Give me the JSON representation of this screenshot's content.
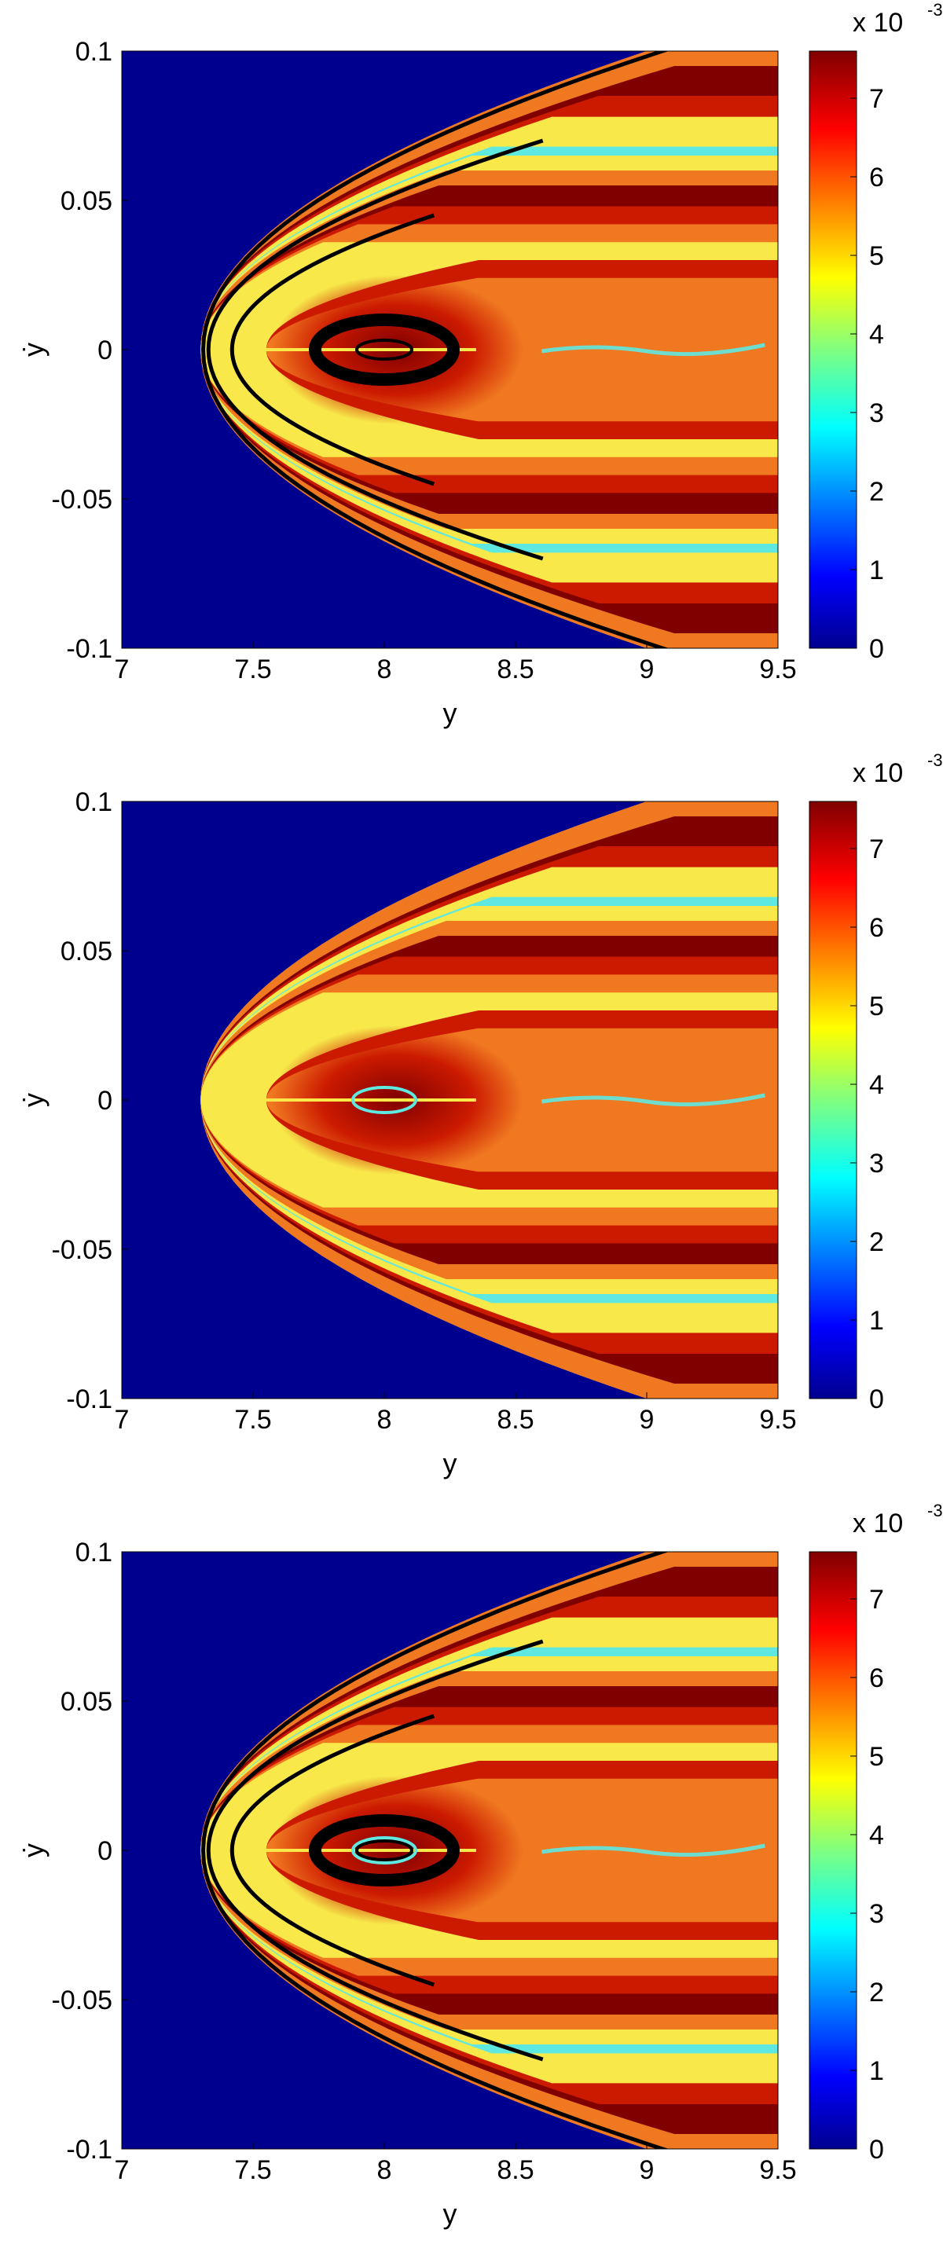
{
  "chart_data": [
    {
      "type": "heatmap",
      "xlabel": "y",
      "ylabel": "ẏ",
      "xlim": [
        7,
        9.5
      ],
      "ylim": [
        -0.1,
        0.1
      ],
      "x_ticks": [
        "7",
        "7.5",
        "8",
        "8.5",
        "9",
        "9.5"
      ],
      "y_ticks": [
        "0.1",
        "0.05",
        "0",
        "-0.05",
        "-0.1"
      ],
      "colorbar": {
        "range": [
          0,
          0.0076
        ],
        "ticks": [
          "0",
          "1",
          "2",
          "3",
          "4",
          "5",
          "6",
          "7"
        ],
        "multiplier_label": "x 10",
        "multiplier_exponent": "-3"
      },
      "overlays": {
        "black_orbit_curves": true,
        "cyan_ellipse": false
      }
    },
    {
      "type": "heatmap",
      "xlabel": "y",
      "ylabel": "ẏ",
      "xlim": [
        7,
        9.5
      ],
      "ylim": [
        -0.1,
        0.1
      ],
      "x_ticks": [
        "7",
        "7.5",
        "8",
        "8.5",
        "9",
        "9.5"
      ],
      "y_ticks": [
        "0.1",
        "0.05",
        "0",
        "-0.05",
        "-0.1"
      ],
      "colorbar": {
        "range": [
          0,
          0.0076
        ],
        "ticks": [
          "0",
          "1",
          "2",
          "3",
          "4",
          "5",
          "6",
          "7"
        ],
        "multiplier_label": "x 10",
        "multiplier_exponent": "-3"
      },
      "overlays": {
        "black_orbit_curves": false,
        "cyan_ellipse": true
      }
    },
    {
      "type": "heatmap",
      "xlabel": "y",
      "ylabel": "ẏ",
      "xlim": [
        7,
        9.5
      ],
      "ylim": [
        -0.1,
        0.1
      ],
      "x_ticks": [
        "7",
        "7.5",
        "8",
        "8.5",
        "9",
        "9.5"
      ],
      "y_ticks": [
        "0.1",
        "0.05",
        "0",
        "-0.05",
        "-0.1"
      ],
      "colorbar": {
        "range": [
          0,
          0.0076
        ],
        "ticks": [
          "0",
          "1",
          "2",
          "3",
          "4",
          "5",
          "6",
          "7"
        ],
        "multiplier_label": "x 10",
        "multiplier_exponent": "-3"
      },
      "overlays": {
        "black_orbit_curves": true,
        "cyan_ellipse": true
      }
    }
  ],
  "colors": {
    "background_region": "#00008f",
    "dark_red": "#800000",
    "red": "#cc1a00",
    "orange": "#f07820",
    "yellow": "#f8e84a",
    "cyan": "#5fe8e0",
    "orbit_curve": "#000000"
  }
}
